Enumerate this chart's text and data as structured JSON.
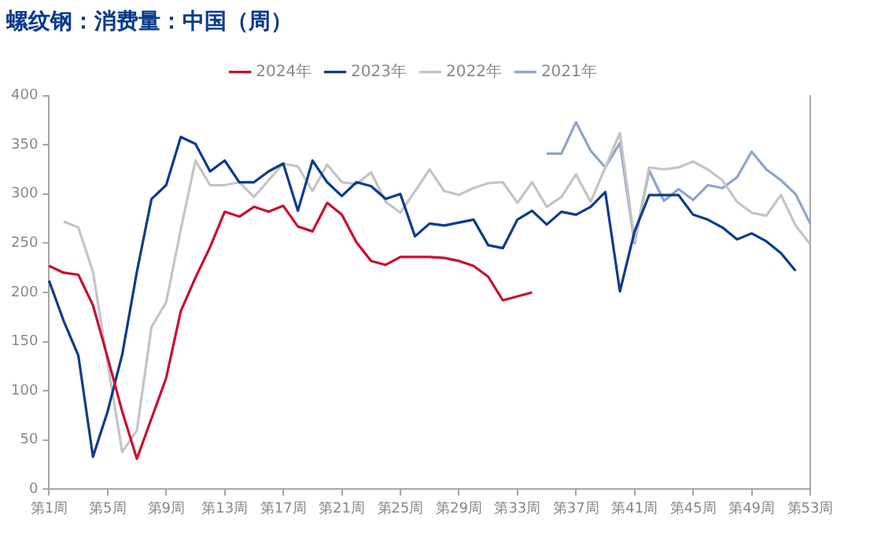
{
  "chart_data": {
    "type": "line",
    "title": "螺纹钢：消费量：中国（周）",
    "categories": [
      "第1周",
      null,
      null,
      null,
      "第5周",
      null,
      null,
      null,
      "第9周",
      null,
      null,
      null,
      "第13周",
      null,
      null,
      null,
      "第17周",
      null,
      null,
      null,
      "第21周",
      null,
      null,
      null,
      "第25周",
      null,
      null,
      null,
      "第29周",
      null,
      null,
      null,
      "第33周",
      null,
      null,
      null,
      "第37周",
      null,
      null,
      null,
      "第41周",
      null,
      null,
      null,
      "第45周",
      null,
      null,
      null,
      "第49周",
      null,
      null,
      null,
      "第53周"
    ],
    "series": [
      {
        "name": "2024年",
        "color": "#c8102e",
        "values": [
          227,
          220,
          218,
          187,
          134,
          79,
          31,
          72,
          113,
          181,
          215,
          246,
          282,
          277,
          287,
          282,
          288,
          267,
          262,
          291,
          279,
          251,
          232,
          228,
          236,
          236,
          236,
          235,
          232,
          227,
          216,
          192,
          196,
          200,
          null,
          null,
          null,
          null,
          null,
          null,
          null,
          null,
          null,
          null,
          null,
          null,
          null,
          null,
          null,
          null,
          null,
          null,
          null
        ]
      },
      {
        "name": "2023年",
        "color": "#0b3c8c",
        "values": [
          212,
          171,
          136,
          33,
          79,
          137,
          221,
          295,
          309,
          358,
          351,
          323,
          334,
          312,
          312,
          323,
          331,
          283,
          334,
          312,
          298,
          312,
          308,
          295,
          300,
          257,
          270,
          268,
          271,
          274,
          248,
          245,
          274,
          283,
          269,
          282,
          279,
          287,
          302,
          201,
          262,
          299,
          299,
          299,
          279,
          274,
          266,
          254,
          260,
          252,
          240,
          222,
          null
        ]
      },
      {
        "name": "2022年",
        "color": "#c4c4c4",
        "values": [
          null,
          272,
          266,
          221,
          128,
          38,
          60,
          165,
          190,
          264,
          334,
          309,
          309,
          312,
          297,
          314,
          331,
          328,
          303,
          330,
          312,
          310,
          322,
          292,
          281,
          303,
          325,
          303,
          299,
          306,
          311,
          312,
          291,
          312,
          287,
          297,
          320,
          292,
          327,
          362,
          252,
          327,
          325,
          327,
          333,
          325,
          314,
          292,
          281,
          278,
          299,
          268,
          249
        ]
      },
      {
        "name": "2021年",
        "color": "#8ea5cc",
        "values": [
          null,
          null,
          null,
          null,
          null,
          null,
          null,
          null,
          null,
          null,
          null,
          null,
          null,
          null,
          null,
          null,
          null,
          null,
          null,
          null,
          null,
          null,
          null,
          null,
          null,
          null,
          null,
          null,
          null,
          null,
          null,
          null,
          null,
          null,
          341,
          341,
          373,
          344,
          327,
          352,
          250,
          324,
          293,
          305,
          294,
          309,
          306,
          317,
          343,
          325,
          314,
          300,
          270
        ]
      }
    ],
    "ylim": [
      0,
      400
    ],
    "yticks": [
      0,
      50,
      100,
      150,
      200,
      250,
      300,
      350,
      400
    ],
    "grid": false,
    "legend": "top",
    "marker": "none",
    "line_style": "solid"
  }
}
